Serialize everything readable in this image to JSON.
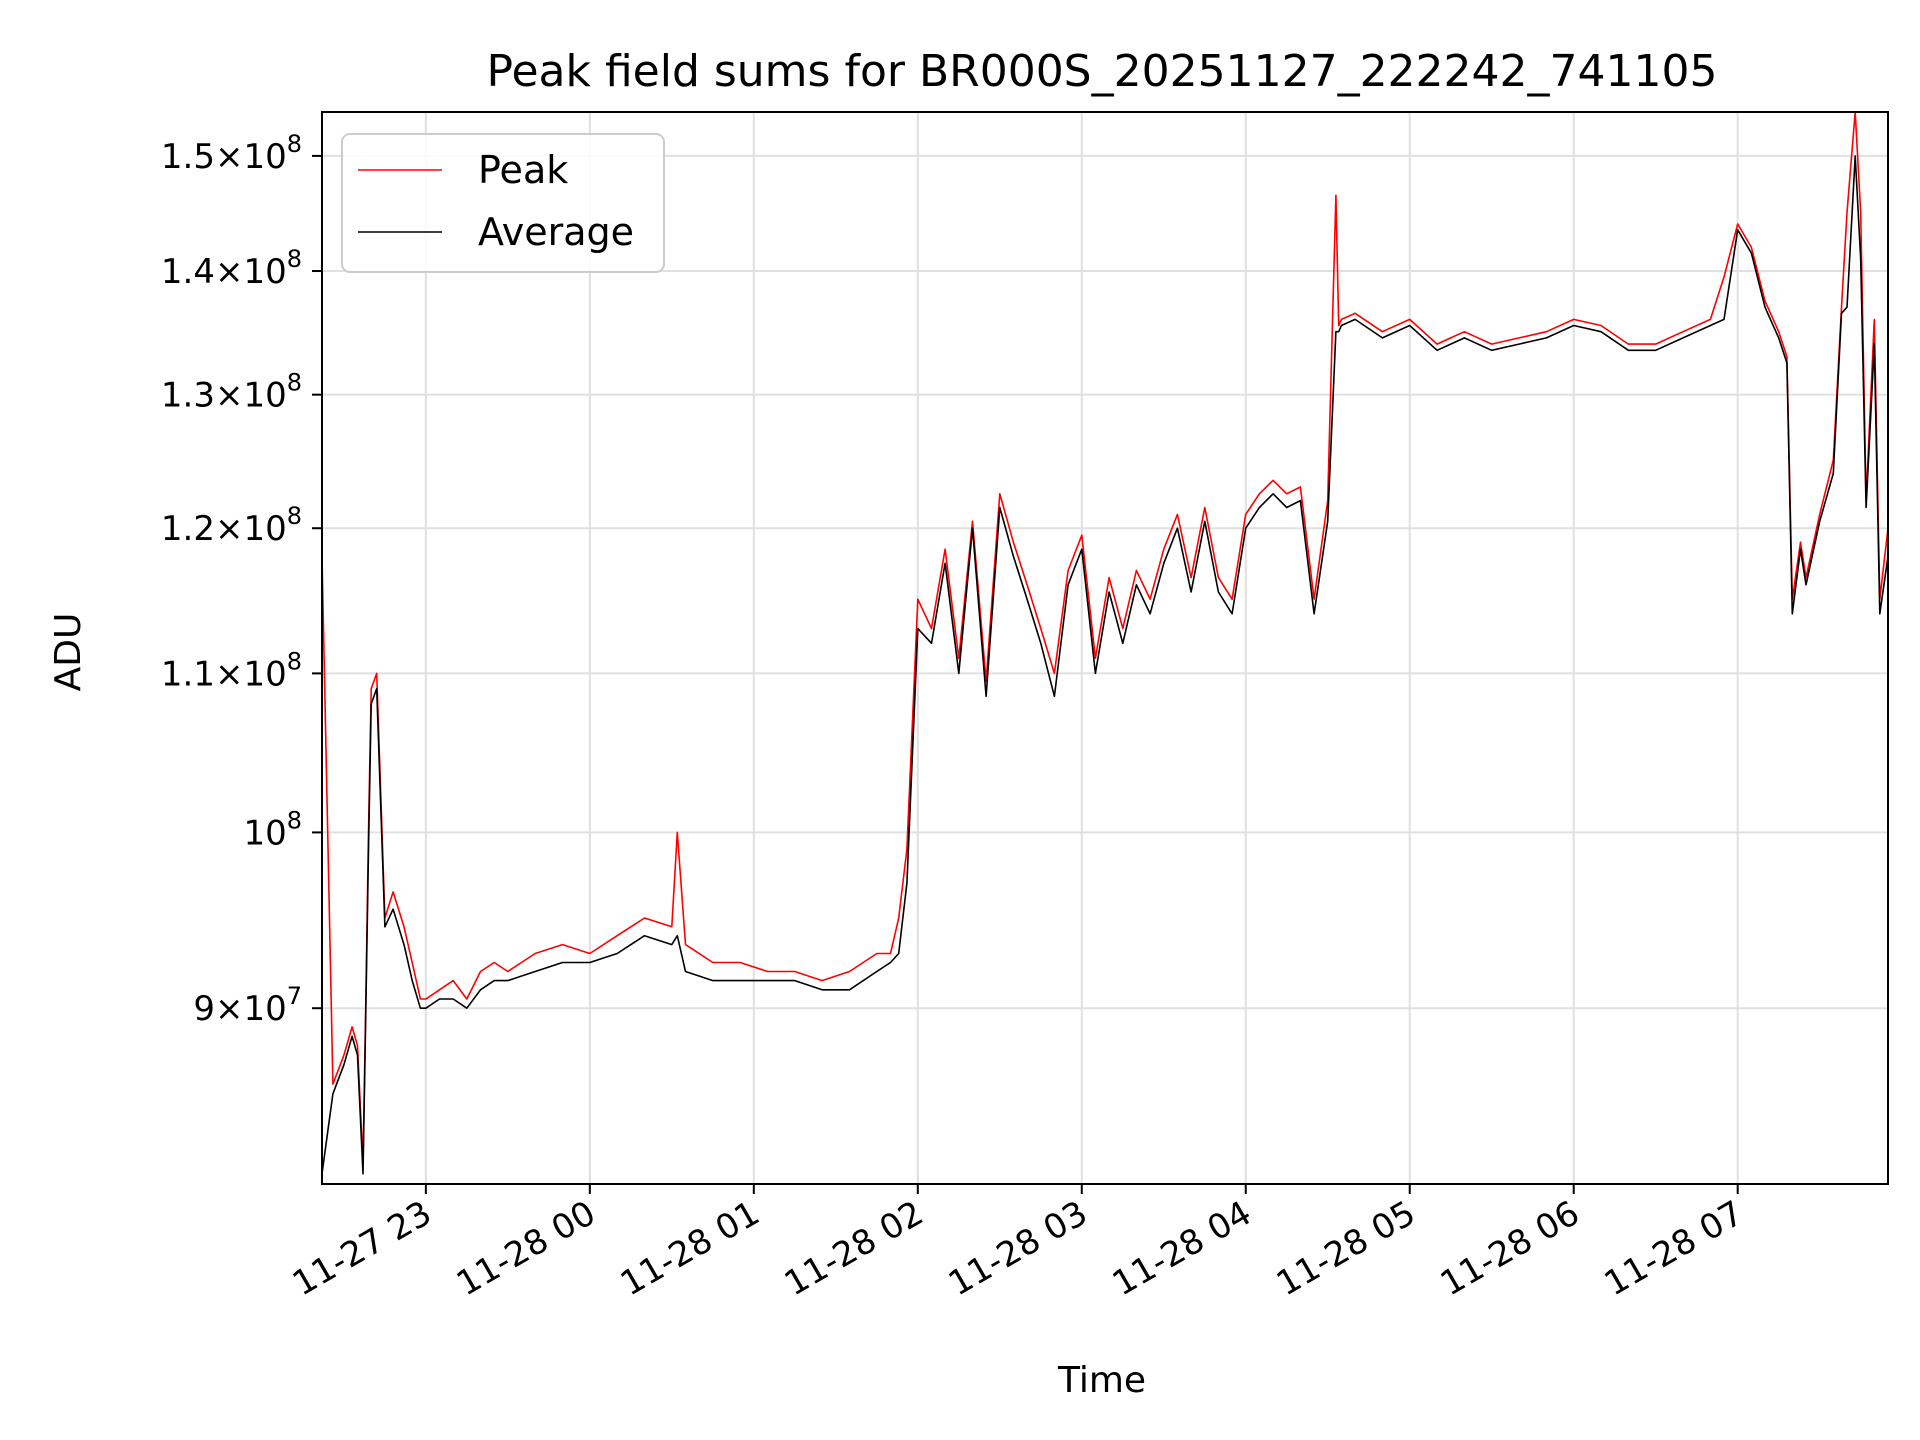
{
  "chart_data": {
    "type": "line",
    "title": "Peak field sums for BR000S_20251127_222242_741105",
    "xlabel": "Time",
    "ylabel": "ADU",
    "yscale": "log",
    "ylim": [
      81000000,
      154000000
    ],
    "xlim": [
      "2025-11-27 22:22",
      "2025-11-28 07:55"
    ],
    "grid": true,
    "legend_position": "top-left",
    "x_tick_labels": [
      "11-27 23",
      "11-28 00",
      "11-28 01",
      "11-28 02",
      "11-28 03",
      "11-28 04",
      "11-28 05",
      "11-28 06",
      "11-28 07"
    ],
    "x_ticks": [
      "2025-11-27 23:00",
      "2025-11-28 00:00",
      "2025-11-28 01:00",
      "2025-11-28 02:00",
      "2025-11-28 03:00",
      "2025-11-28 04:00",
      "2025-11-28 05:00",
      "2025-11-28 06:00",
      "2025-11-28 07:00"
    ],
    "y_ticks": [
      {
        "value": 90000000,
        "mant": "9",
        "exp": "7"
      },
      {
        "value": 100000000,
        "mant": "",
        "exp": "8"
      },
      {
        "value": 110000000,
        "mant": "1.1",
        "exp": "8"
      },
      {
        "value": 120000000,
        "mant": "1.2",
        "exp": "8"
      },
      {
        "value": 130000000,
        "mant": "1.3",
        "exp": "8"
      },
      {
        "value": 140000000,
        "mant": "1.4",
        "exp": "8"
      },
      {
        "value": 150000000,
        "mant": "1.5",
        "exp": "8"
      }
    ],
    "series": [
      {
        "name": "Peak",
        "color": "#ff0000",
        "x": [
          "2025-11-27 22:22",
          "2025-11-27 22:26",
          "2025-11-27 22:30",
          "2025-11-27 22:33",
          "2025-11-27 22:35",
          "2025-11-27 22:37",
          "2025-11-27 22:38",
          "2025-11-27 22:39",
          "2025-11-27 22:40",
          "2025-11-27 22:42",
          "2025-11-27 22:45",
          "2025-11-27 22:48",
          "2025-11-27 22:52",
          "2025-11-27 22:55",
          "2025-11-27 22:58",
          "2025-11-27 23:00",
          "2025-11-27 23:05",
          "2025-11-27 23:10",
          "2025-11-27 23:15",
          "2025-11-27 23:20",
          "2025-11-27 23:25",
          "2025-11-27 23:30",
          "2025-11-27 23:40",
          "2025-11-27 23:50",
          "2025-11-28 00:00",
          "2025-11-28 00:10",
          "2025-11-28 00:20",
          "2025-11-28 00:30",
          "2025-11-28 00:32",
          "2025-11-28 00:35",
          "2025-11-28 00:45",
          "2025-11-28 00:55",
          "2025-11-28 01:05",
          "2025-11-28 01:15",
          "2025-11-28 01:25",
          "2025-11-28 01:35",
          "2025-11-28 01:45",
          "2025-11-28 01:50",
          "2025-11-28 01:53",
          "2025-11-28 01:56",
          "2025-11-28 02:00",
          "2025-11-28 02:05",
          "2025-11-28 02:10",
          "2025-11-28 02:15",
          "2025-11-28 02:20",
          "2025-11-28 02:25",
          "2025-11-28 02:30",
          "2025-11-28 02:35",
          "2025-11-28 02:40",
          "2025-11-28 02:45",
          "2025-11-28 02:50",
          "2025-11-28 02:55",
          "2025-11-28 03:00",
          "2025-11-28 03:05",
          "2025-11-28 03:10",
          "2025-11-28 03:15",
          "2025-11-28 03:20",
          "2025-11-28 03:25",
          "2025-11-28 03:30",
          "2025-11-28 03:35",
          "2025-11-28 03:40",
          "2025-11-28 03:45",
          "2025-11-28 03:50",
          "2025-11-28 03:55",
          "2025-11-28 04:00",
          "2025-11-28 04:05",
          "2025-11-28 04:10",
          "2025-11-28 04:15",
          "2025-11-28 04:20",
          "2025-11-28 04:25",
          "2025-11-28 04:30",
          "2025-11-28 04:33",
          "2025-11-28 04:34",
          "2025-11-28 04:35",
          "2025-11-28 04:40",
          "2025-11-28 04:50",
          "2025-11-28 05:00",
          "2025-11-28 05:10",
          "2025-11-28 05:15",
          "2025-11-28 05:20",
          "2025-11-28 05:30",
          "2025-11-28 05:40",
          "2025-11-28 05:50",
          "2025-11-28 06:00",
          "2025-11-28 06:10",
          "2025-11-28 06:20",
          "2025-11-28 06:30",
          "2025-11-28 06:40",
          "2025-11-28 06:50",
          "2025-11-28 06:55",
          "2025-11-28 07:00",
          "2025-11-28 07:05",
          "2025-11-28 07:10",
          "2025-11-28 07:15",
          "2025-11-28 07:18",
          "2025-11-28 07:20",
          "2025-11-28 07:23",
          "2025-11-28 07:25",
          "2025-11-28 07:30",
          "2025-11-28 07:35",
          "2025-11-28 07:38",
          "2025-11-28 07:40",
          "2025-11-28 07:43",
          "2025-11-28 07:45",
          "2025-11-28 07:47",
          "2025-11-28 07:50",
          "2025-11-28 07:52",
          "2025-11-28 07:55"
        ],
        "y": [
          118000000,
          86000000,
          87500000,
          89000000,
          88000000,
          82000000,
          90000000,
          100000000,
          109000000,
          110000000,
          95000000,
          96500000,
          94500000,
          92500000,
          90500000,
          90500000,
          91000000,
          91500000,
          90500000,
          92000000,
          92500000,
          92000000,
          93000000,
          93500000,
          93000000,
          94000000,
          95000000,
          94500000,
          100000000,
          93500000,
          92500000,
          92500000,
          92000000,
          92000000,
          91500000,
          92000000,
          93000000,
          93000000,
          95000000,
          99000000,
          115000000,
          113000000,
          118500000,
          111000000,
          120500000,
          109500000,
          122500000,
          119000000,
          116000000,
          113000000,
          110000000,
          117000000,
          119500000,
          111000000,
          116500000,
          113000000,
          117000000,
          115000000,
          118500000,
          121000000,
          116500000,
          121500000,
          116500000,
          115000000,
          121000000,
          122500000,
          123500000,
          122500000,
          123000000,
          115000000,
          122000000,
          146500000,
          135500000,
          136000000,
          136500000,
          135000000,
          136000000,
          134000000,
          134500000,
          135000000,
          134000000,
          134500000,
          135000000,
          136000000,
          135500000,
          134000000,
          134000000,
          135000000,
          136000000,
          139500000,
          144000000,
          142000000,
          137500000,
          135000000,
          133000000,
          115000000,
          119000000,
          116500000,
          121000000,
          125000000,
          137000000,
          145000000,
          154000000,
          145000000,
          122000000,
          136000000,
          115000000,
          120000000
        ],
        "x_positions_note": ""
      },
      {
        "name": "Average",
        "color": "#000000",
        "x": [
          "2025-11-27 22:22",
          "2025-11-27 22:26",
          "2025-11-27 22:30",
          "2025-11-27 22:33",
          "2025-11-27 22:35",
          "2025-11-27 22:37",
          "2025-11-27 22:38",
          "2025-11-27 22:39",
          "2025-11-27 22:40",
          "2025-11-27 22:42",
          "2025-11-27 22:45",
          "2025-11-27 22:48",
          "2025-11-27 22:52",
          "2025-11-27 22:55",
          "2025-11-27 22:58",
          "2025-11-27 23:00",
          "2025-11-27 23:05",
          "2025-11-27 23:10",
          "2025-11-27 23:15",
          "2025-11-27 23:20",
          "2025-11-27 23:25",
          "2025-11-27 23:30",
          "2025-11-27 23:40",
          "2025-11-27 23:50",
          "2025-11-28 00:00",
          "2025-11-28 00:10",
          "2025-11-28 00:20",
          "2025-11-28 00:30",
          "2025-11-28 00:32",
          "2025-11-28 00:35",
          "2025-11-28 00:45",
          "2025-11-28 00:55",
          "2025-11-28 01:05",
          "2025-11-28 01:15",
          "2025-11-28 01:25",
          "2025-11-28 01:35",
          "2025-11-28 01:45",
          "2025-11-28 01:50",
          "2025-11-28 01:53",
          "2025-11-28 01:56",
          "2025-11-28 02:00",
          "2025-11-28 02:05",
          "2025-11-28 02:10",
          "2025-11-28 02:15",
          "2025-11-28 02:20",
          "2025-11-28 02:25",
          "2025-11-28 02:30",
          "2025-11-28 02:35",
          "2025-11-28 02:40",
          "2025-11-28 02:45",
          "2025-11-28 02:50",
          "2025-11-28 02:55",
          "2025-11-28 03:00",
          "2025-11-28 03:05",
          "2025-11-28 03:10",
          "2025-11-28 03:15",
          "2025-11-28 03:20",
          "2025-11-28 03:25",
          "2025-11-28 03:30",
          "2025-11-28 03:35",
          "2025-11-28 03:40",
          "2025-11-28 03:45",
          "2025-11-28 03:50",
          "2025-11-28 03:55",
          "2025-11-28 04:00",
          "2025-11-28 04:05",
          "2025-11-28 04:10",
          "2025-11-28 04:15",
          "2025-11-28 04:20",
          "2025-11-28 04:25",
          "2025-11-28 04:30",
          "2025-11-28 04:33",
          "2025-11-28 04:34",
          "2025-11-28 04:35",
          "2025-11-28 04:40",
          "2025-11-28 04:50",
          "2025-11-28 05:00",
          "2025-11-28 05:10",
          "2025-11-28 05:15",
          "2025-11-28 05:20",
          "2025-11-28 05:30",
          "2025-11-28 05:40",
          "2025-11-28 05:50",
          "2025-11-28 06:00",
          "2025-11-28 06:10",
          "2025-11-28 06:20",
          "2025-11-28 06:30",
          "2025-11-28 06:40",
          "2025-11-28 06:50",
          "2025-11-28 06:55",
          "2025-11-28 07:00",
          "2025-11-28 07:05",
          "2025-11-28 07:10",
          "2025-11-28 07:15",
          "2025-11-28 07:18",
          "2025-11-28 07:20",
          "2025-11-28 07:23",
          "2025-11-28 07:25",
          "2025-11-28 07:30",
          "2025-11-28 07:35",
          "2025-11-28 07:38",
          "2025-11-28 07:40",
          "2025-11-28 07:43",
          "2025-11-28 07:45",
          "2025-11-28 07:47",
          "2025-11-28 07:50",
          "2025-11-28 07:52",
          "2025-11-28 07:55"
        ],
        "y": [
          81500000,
          85500000,
          87000000,
          88500000,
          87500000,
          81500000,
          89500000,
          99000000,
          108000000,
          109000000,
          94500000,
          95500000,
          93500000,
          91500000,
          90000000,
          90000000,
          90500000,
          90500000,
          90000000,
          91000000,
          91500000,
          91500000,
          92000000,
          92500000,
          92500000,
          93000000,
          94000000,
          93500000,
          94000000,
          92000000,
          91500000,
          91500000,
          91500000,
          91500000,
          91000000,
          91000000,
          92000000,
          92500000,
          93000000,
          97000000,
          113000000,
          112000000,
          117500000,
          110000000,
          120000000,
          108500000,
          121500000,
          118000000,
          115000000,
          112000000,
          108500000,
          116000000,
          118500000,
          110000000,
          115500000,
          112000000,
          116000000,
          114000000,
          117500000,
          120000000,
          115500000,
          120500000,
          115500000,
          114000000,
          120000000,
          121500000,
          122500000,
          121500000,
          122000000,
          114000000,
          120500000,
          135000000,
          135000000,
          135500000,
          136000000,
          134500000,
          135500000,
          133500000,
          134000000,
          134500000,
          133500000,
          134000000,
          134500000,
          135500000,
          135000000,
          133500000,
          133500000,
          134500000,
          135500000,
          136000000,
          143500000,
          141500000,
          137000000,
          134500000,
          132500000,
          114000000,
          118500000,
          116000000,
          120500000,
          124000000,
          136500000,
          137000000,
          150000000,
          141000000,
          121500000,
          134000000,
          114000000,
          118000000
        ]
      }
    ]
  },
  "legend": [
    {
      "label": "Peak",
      "color": "#ff0000"
    },
    {
      "label": "Average",
      "color": "#000000"
    }
  ]
}
